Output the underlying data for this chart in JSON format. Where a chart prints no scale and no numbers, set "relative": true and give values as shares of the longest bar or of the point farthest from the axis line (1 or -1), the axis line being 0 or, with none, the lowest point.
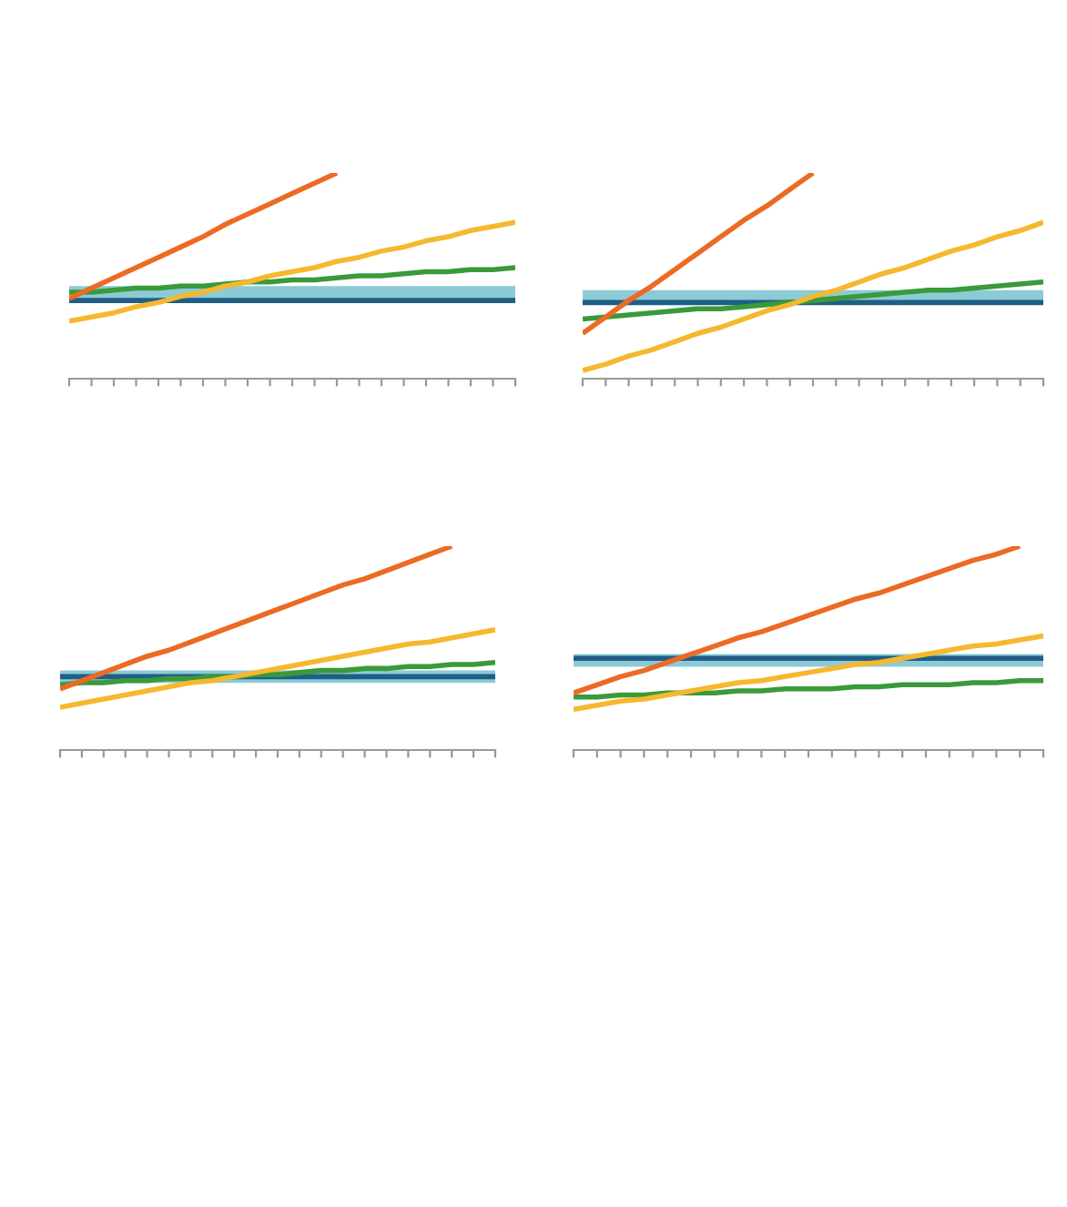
{
  "chart_data": [
    {
      "type": "line",
      "relative": true,
      "categories": [
        null,
        null,
        null,
        null,
        null,
        null,
        null,
        null,
        null,
        null,
        null,
        null,
        null,
        null,
        null,
        null,
        null,
        null,
        null,
        null,
        null
      ],
      "series": [
        {
          "color": "#1f5f86",
          "values": [
            0.38,
            0.38,
            0.38,
            0.38,
            0.38,
            0.38,
            0.38,
            0.38,
            0.38,
            0.38,
            0.38,
            0.38,
            0.38,
            0.38,
            0.38,
            0.38,
            0.38,
            0.38,
            0.38,
            0.38,
            0.38
          ]
        },
        {
          "color": "#8ccbd6",
          "values": [
            0.42,
            0.42,
            0.42,
            0.42,
            0.42,
            0.42,
            0.42,
            0.42,
            0.42,
            0.42,
            0.42,
            0.42,
            0.42,
            0.42,
            0.42,
            0.42,
            0.42,
            0.42,
            0.42,
            0.42,
            0.42
          ]
        },
        {
          "color": "#3a9a3a",
          "values": [
            0.42,
            0.42,
            0.43,
            0.44,
            0.44,
            0.45,
            0.45,
            0.46,
            0.47,
            0.47,
            0.48,
            0.48,
            0.49,
            0.5,
            0.5,
            0.51,
            0.52,
            0.52,
            0.53,
            0.53,
            0.54
          ]
        },
        {
          "color": "#f5b82e",
          "values": [
            0.28,
            0.3,
            0.32,
            0.35,
            0.37,
            0.4,
            0.42,
            0.45,
            0.47,
            0.5,
            0.52,
            0.54,
            0.57,
            0.59,
            0.62,
            0.64,
            0.67,
            0.69,
            0.72,
            0.74,
            0.76
          ]
        },
        {
          "color": "#ec6a24",
          "values": [
            0.39,
            0.44,
            0.49,
            0.54,
            0.59,
            0.64,
            0.69,
            0.75,
            0.8,
            0.85,
            0.9,
            0.95,
            1.0,
            null,
            null,
            null,
            null,
            null,
            null,
            null,
            null
          ]
        }
      ]
    },
    {
      "type": "line",
      "relative": true,
      "categories": [
        null,
        null,
        null,
        null,
        null,
        null,
        null,
        null,
        null,
        null,
        null,
        null,
        null,
        null,
        null,
        null,
        null,
        null,
        null,
        null,
        null
      ],
      "series": [
        {
          "color": "#1f5f86",
          "values": [
            0.37,
            0.37,
            0.37,
            0.37,
            0.37,
            0.37,
            0.37,
            0.37,
            0.37,
            0.37,
            0.37,
            0.37,
            0.37,
            0.37,
            0.37,
            0.37,
            0.37,
            0.37,
            0.37,
            0.37,
            0.37
          ]
        },
        {
          "color": "#8ccbd6",
          "values": [
            0.4,
            0.4,
            0.4,
            0.4,
            0.4,
            0.4,
            0.4,
            0.4,
            0.4,
            0.4,
            0.4,
            0.4,
            0.4,
            0.4,
            0.4,
            0.4,
            0.4,
            0.4,
            0.4,
            0.4,
            0.4
          ]
        },
        {
          "color": "#3a9a3a",
          "values": [
            0.29,
            0.3,
            0.31,
            0.32,
            0.33,
            0.34,
            0.34,
            0.35,
            0.36,
            0.37,
            0.38,
            0.39,
            0.4,
            0.41,
            0.42,
            0.43,
            0.43,
            0.44,
            0.45,
            0.46,
            0.47
          ]
        },
        {
          "color": "#f5b82e",
          "values": [
            0.04,
            0.07,
            0.11,
            0.14,
            0.18,
            0.22,
            0.25,
            0.29,
            0.33,
            0.36,
            0.4,
            0.43,
            0.47,
            0.51,
            0.54,
            0.58,
            0.62,
            0.65,
            0.69,
            0.72,
            0.76
          ]
        },
        {
          "color": "#ec6a24",
          "values": [
            0.22,
            0.3,
            0.38,
            0.45,
            0.53,
            0.61,
            0.69,
            0.77,
            0.84,
            0.92,
            1.0,
            null,
            null,
            null,
            null,
            null,
            null,
            null,
            null,
            null,
            null
          ]
        }
      ]
    },
    {
      "type": "line",
      "relative": true,
      "categories": [
        null,
        null,
        null,
        null,
        null,
        null,
        null,
        null,
        null,
        null,
        null,
        null,
        null,
        null,
        null,
        null,
        null,
        null,
        null,
        null,
        null
      ],
      "series": [
        {
          "color": "#1f5f86",
          "values": [
            0.36,
            0.36,
            0.36,
            0.36,
            0.36,
            0.36,
            0.36,
            0.36,
            0.36,
            0.36,
            0.36,
            0.36,
            0.36,
            0.36,
            0.36,
            0.36,
            0.36,
            0.36,
            0.36,
            0.36,
            0.36
          ]
        },
        {
          "color": "#8ccbd6",
          "values": [
            0.36,
            0.36,
            0.36,
            0.36,
            0.36,
            0.36,
            0.36,
            0.36,
            0.36,
            0.36,
            0.36,
            0.36,
            0.36,
            0.36,
            0.36,
            0.36,
            0.36,
            0.36,
            0.36,
            0.36,
            0.36
          ]
        },
        {
          "color": "#3a9a3a",
          "values": [
            0.32,
            0.33,
            0.33,
            0.34,
            0.34,
            0.35,
            0.35,
            0.36,
            0.36,
            0.37,
            0.37,
            0.38,
            0.39,
            0.39,
            0.4,
            0.4,
            0.41,
            0.41,
            0.42,
            0.42,
            0.43
          ]
        },
        {
          "color": "#f5b82e",
          "values": [
            0.21,
            0.23,
            0.25,
            0.27,
            0.29,
            0.31,
            0.33,
            0.34,
            0.36,
            0.38,
            0.4,
            0.42,
            0.44,
            0.46,
            0.48,
            0.5,
            0.52,
            0.53,
            0.55,
            0.57,
            0.59
          ]
        },
        {
          "color": "#ec6a24",
          "values": [
            0.3,
            0.34,
            0.38,
            0.42,
            0.46,
            0.49,
            0.53,
            0.57,
            0.61,
            0.65,
            0.69,
            0.73,
            0.77,
            0.81,
            0.84,
            0.88,
            0.92,
            0.96,
            1.0,
            null,
            null
          ]
        }
      ]
    },
    {
      "type": "line",
      "relative": true,
      "categories": [
        null,
        null,
        null,
        null,
        null,
        null,
        null,
        null,
        null,
        null,
        null,
        null,
        null,
        null,
        null,
        null,
        null,
        null,
        null,
        null,
        null
      ],
      "series": [
        {
          "color": "#1f5f86",
          "values": [
            0.45,
            0.45,
            0.45,
            0.45,
            0.45,
            0.45,
            0.45,
            0.45,
            0.45,
            0.45,
            0.45,
            0.45,
            0.45,
            0.45,
            0.45,
            0.45,
            0.45,
            0.45,
            0.45,
            0.45,
            0.45
          ]
        },
        {
          "color": "#8ccbd6",
          "values": [
            0.44,
            0.44,
            0.44,
            0.44,
            0.44,
            0.44,
            0.44,
            0.44,
            0.44,
            0.44,
            0.44,
            0.44,
            0.44,
            0.44,
            0.44,
            0.44,
            0.44,
            0.44,
            0.44,
            0.44,
            0.44
          ]
        },
        {
          "color": "#3a9a3a",
          "values": [
            0.26,
            0.26,
            0.27,
            0.27,
            0.28,
            0.28,
            0.28,
            0.29,
            0.29,
            0.3,
            0.3,
            0.3,
            0.31,
            0.31,
            0.32,
            0.32,
            0.32,
            0.33,
            0.33,
            0.34,
            0.34
          ]
        },
        {
          "color": "#f5b82e",
          "values": [
            0.2,
            0.22,
            0.24,
            0.25,
            0.27,
            0.29,
            0.31,
            0.33,
            0.34,
            0.36,
            0.38,
            0.4,
            0.42,
            0.43,
            0.45,
            0.47,
            0.49,
            0.51,
            0.52,
            0.54,
            0.56
          ]
        },
        {
          "color": "#ec6a24",
          "values": [
            0.28,
            0.32,
            0.36,
            0.39,
            0.43,
            0.47,
            0.51,
            0.55,
            0.58,
            0.62,
            0.66,
            0.7,
            0.74,
            0.77,
            0.81,
            0.85,
            0.89,
            0.93,
            0.96,
            1.0,
            null
          ]
        }
      ]
    }
  ]
}
